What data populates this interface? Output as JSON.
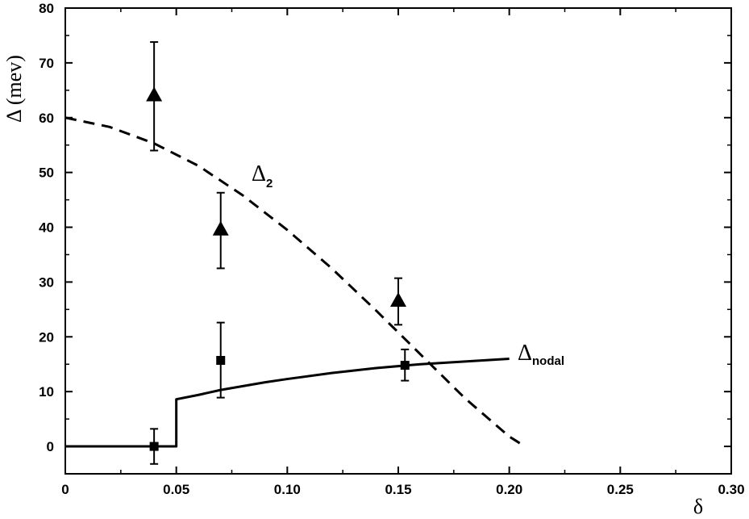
{
  "chart_data": {
    "type": "line",
    "xlabel": "δ",
    "ylabel": "Δ (mev)",
    "xlim": [
      0,
      0.3
    ],
    "ylim": [
      -5,
      80
    ],
    "xticks": [
      0,
      0.05,
      0.1,
      0.15,
      0.2,
      0.25,
      0.3
    ],
    "xtick_labels": [
      "0",
      "0.05",
      "0.10",
      "0.15",
      "0.20",
      "0.25",
      "0.30"
    ],
    "yticks": [
      0,
      10,
      20,
      30,
      40,
      50,
      60,
      70,
      80
    ],
    "ytick_labels": [
      "0",
      "10",
      "20",
      "30",
      "40",
      "50",
      "60",
      "70",
      "80"
    ],
    "grid": false,
    "series": [
      {
        "name": "Δ2",
        "label_main": "Δ",
        "label_sub": "2",
        "style": "dashed",
        "color": "#000000",
        "x": [
          0,
          0.02,
          0.04,
          0.06,
          0.08,
          0.1,
          0.12,
          0.14,
          0.16,
          0.18,
          0.2,
          0.207
        ],
        "y": [
          60,
          58.3,
          55.3,
          51.2,
          45.8,
          39.5,
          32.5,
          24.8,
          16.8,
          8.8,
          1.8,
          0
        ]
      },
      {
        "name": "Δnodal",
        "label_main": "Δ",
        "label_sub": "nodal",
        "style": "solid",
        "color": "#000000",
        "x": [
          0,
          0.05,
          0.05,
          0.06,
          0.07,
          0.08,
          0.09,
          0.1,
          0.12,
          0.14,
          0.16,
          0.18,
          0.2
        ],
        "y": [
          0,
          0,
          8.6,
          9.4,
          10.3,
          11.0,
          11.7,
          12.3,
          13.4,
          14.3,
          15.0,
          15.5,
          16.0
        ]
      },
      {
        "name": "triangles",
        "marker": "triangle",
        "points": [
          {
            "x": 0.04,
            "y": 64,
            "ymin": 54,
            "ymax": 73.8
          },
          {
            "x": 0.07,
            "y": 39.5,
            "ymin": 32.5,
            "ymax": 46.3
          },
          {
            "x": 0.15,
            "y": 26.5,
            "ymin": 22.2,
            "ymax": 30.7
          }
        ]
      },
      {
        "name": "squares",
        "marker": "square",
        "points": [
          {
            "x": 0.04,
            "y": 0,
            "ymin": -3.2,
            "ymax": 3.2
          },
          {
            "x": 0.07,
            "y": 15.7,
            "ymin": 8.9,
            "ymax": 22.6
          },
          {
            "x": 0.153,
            "y": 14.8,
            "ymin": 12.0,
            "ymax": 17.7
          }
        ]
      }
    ]
  }
}
